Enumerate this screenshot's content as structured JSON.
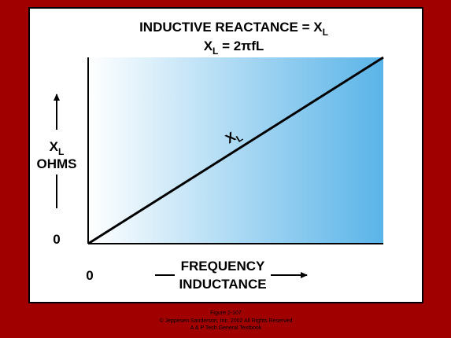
{
  "title": {
    "main": "INDUCTIVE REACTANCE = X",
    "main_sub": "L",
    "formula": "X",
    "formula_sub": "L",
    "formula_rest": " = 2πfL"
  },
  "y_axis": {
    "symbol": "X",
    "symbol_sub": "L",
    "unit": "OHMS",
    "origin": "0"
  },
  "x_axis": {
    "origin": "0",
    "line1": "FREQUENCY",
    "line2": "INDUCTANCE"
  },
  "curve_label": {
    "symbol": "X",
    "sub": "L"
  },
  "footer": [
    "Figure 2-107",
    "© Jeppesen Sanderson, Inc. 2002 All Rights Reserved",
    "A & P Tech General Textbook"
  ]
}
